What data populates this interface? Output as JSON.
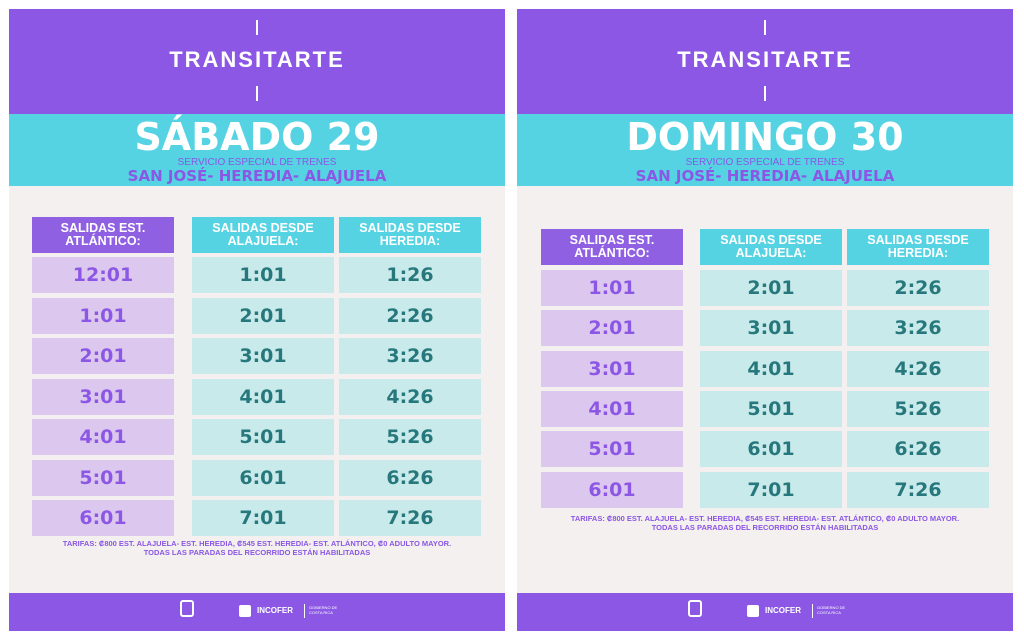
{
  "posters": [
    {
      "brand": "TRANSITARTE",
      "day": "SÁBADO 29",
      "service": "SERVICIO ESPECIAL DE TRENES",
      "route": "SAN JOSÉ- HEREDIA- ALAJUELA",
      "headers": [
        "SALIDAS EST. ATLÁNTICO:",
        "SALIDAS DESDE ALAJUELA:",
        "SALIDAS DESDE HEREDIA:"
      ],
      "rows": [
        [
          "12:01",
          "1:01",
          "1:26"
        ],
        [
          "1:01",
          "2:01",
          "2:26"
        ],
        [
          "2:01",
          "3:01",
          "3:26"
        ],
        [
          "3:01",
          "4:01",
          "4:26"
        ],
        [
          "4:01",
          "5:01",
          "5:26"
        ],
        [
          "5:01",
          "6:01",
          "6:26"
        ],
        [
          "6:01",
          "7:01",
          "7:26"
        ]
      ],
      "tarifas": "TARIFAS: ₡800 EST. ALAJUELA- EST. HEREDIA, ₡545 EST. HEREDIA- EST. ATLÁNTICO, ₡0 ADULTO MAYOR.",
      "paradas": "TODAS LAS PARADAS DEL RECORRIDO ESTÁN HABILITADAS",
      "footer": {
        "incofer": "INCOFER",
        "gobierno": "GOBIERNO DE COSTA RICA"
      }
    },
    {
      "brand": "TRANSITARTE",
      "day": "DOMINGO 30",
      "service": "SERVICIO ESPECIAL DE TRENES",
      "route": "SAN JOSÉ- HEREDIA- ALAJUELA",
      "headers": [
        "SALIDAS EST. ATLÁNTICO:",
        "SALIDAS DESDE ALAJUELA:",
        "SALIDAS DESDE HEREDIA:"
      ],
      "rows": [
        [
          "1:01",
          "2:01",
          "2:26"
        ],
        [
          "2:01",
          "3:01",
          "3:26"
        ],
        [
          "3:01",
          "4:01",
          "4:26"
        ],
        [
          "4:01",
          "5:01",
          "5:26"
        ],
        [
          "5:01",
          "6:01",
          "6:26"
        ],
        [
          "6:01",
          "7:01",
          "7:26"
        ]
      ],
      "tarifas": "TARIFAS: ₡800 EST. ALAJUELA- EST. HEREDIA, ₡545 EST. HEREDIA- EST. ATLÁNTICO, ₡0 ADULTO MAYOR.",
      "paradas": "TODAS LAS PARADAS DEL RECORRIDO ESTÁN HABILITADAS",
      "footer": {
        "incofer": "INCOFER",
        "gobierno": "GOBIERNO DE COSTA RICA"
      }
    }
  ]
}
